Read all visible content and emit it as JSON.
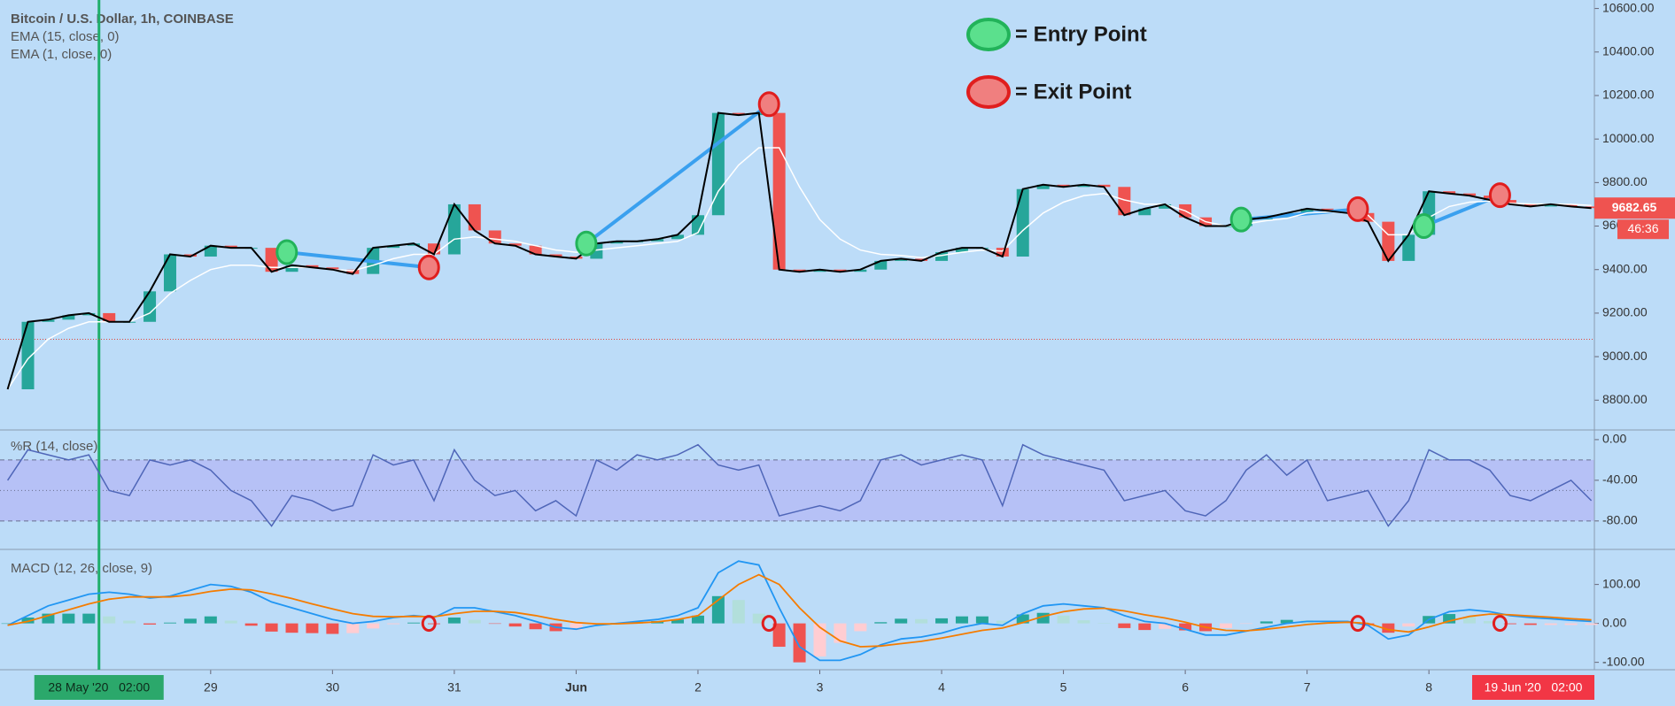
{
  "chart_data": [
    {
      "type": "candlestick-line",
      "title": "Bitcoin / U.S. Dollar, 1h, COINBASE",
      "x": [
        -16,
        -12,
        -8,
        -4,
        0,
        4,
        8,
        12,
        16,
        20,
        24,
        28,
        32,
        36,
        40,
        44,
        48,
        52,
        56,
        60,
        64,
        68,
        72,
        76,
        80,
        84,
        88,
        92,
        96,
        100,
        104,
        108,
        112,
        116,
        120,
        124,
        128,
        132,
        136,
        140,
        144,
        148,
        152,
        156,
        160,
        164,
        168,
        172,
        176,
        180,
        184,
        188,
        192,
        196,
        200,
        204,
        208,
        212,
        216,
        220,
        224,
        228,
        232,
        236,
        240,
        244,
        248,
        252,
        256,
        260,
        264,
        268,
        272,
        276,
        280,
        284,
        288,
        292,
        296
      ],
      "xlim": [
        -17.5,
        296.6
      ],
      "xticks": [
        {
          "value": 24,
          "label": "29"
        },
        {
          "value": 48,
          "label": "30"
        },
        {
          "value": 72,
          "label": "31"
        },
        {
          "value": 96,
          "label": "Jun"
        },
        {
          "value": 120,
          "label": "2"
        },
        {
          "value": 144,
          "label": "3"
        },
        {
          "value": 168,
          "label": "4"
        },
        {
          "value": 192,
          "label": "5"
        },
        {
          "value": 216,
          "label": "6"
        },
        {
          "value": 240,
          "label": "7"
        },
        {
          "value": 264,
          "label": "8"
        }
      ],
      "ylim": [
        8663,
        10639
      ],
      "yticks": [
        {
          "value": 8800,
          "label": "8800.00"
        },
        {
          "value": 9000,
          "label": "9000.00"
        },
        {
          "value": 9200,
          "label": "9200.00"
        },
        {
          "value": 9400,
          "label": "9400.00"
        },
        {
          "value": 9600,
          "label": "9600.00"
        },
        {
          "value": 9800,
          "label": "9800.00"
        },
        {
          "value": 10000,
          "label": "10000.00"
        },
        {
          "value": 10200,
          "label": "10200.00"
        },
        {
          "value": 10400,
          "label": "10400.00"
        },
        {
          "value": 10600,
          "label": "10600.00"
        }
      ],
      "up_color": "#26a69a",
      "down_color": "#ef5350",
      "series": [
        {
          "name": "EMA (15, close, 0)",
          "color": "#ffffff",
          "values": [
            8850,
            8990,
            9080,
            9130,
            9160,
            9160,
            9160,
            9200,
            9290,
            9350,
            9400,
            9420,
            9420,
            9410,
            9410,
            9410,
            9400,
            9395,
            9420,
            9450,
            9470,
            9470,
            9540,
            9550,
            9540,
            9530,
            9510,
            9490,
            9480,
            9490,
            9500,
            9510,
            9520,
            9530,
            9570,
            9760,
            9880,
            9960,
            9960,
            9780,
            9630,
            9540,
            9490,
            9470,
            9465,
            9455,
            9465,
            9480,
            9490,
            9485,
            9580,
            9660,
            9710,
            9740,
            9750,
            9720,
            9700,
            9700,
            9670,
            9620,
            9600,
            9610,
            9625,
            9635,
            9660,
            9665,
            9662,
            9650,
            9560,
            9560,
            9640,
            9690,
            9710,
            9715,
            9705,
            9702,
            9701,
            9700,
            9695
          ]
        },
        {
          "name": "EMA (1, close, 0)",
          "color": "#000000",
          "values": [
            8850,
            9160,
            9170,
            9190,
            9200,
            9160,
            9160,
            9300,
            9470,
            9460,
            9510,
            9500,
            9500,
            9390,
            9420,
            9410,
            9400,
            9380,
            9500,
            9510,
            9520,
            9470,
            9700,
            9580,
            9520,
            9510,
            9470,
            9460,
            9450,
            9520,
            9530,
            9530,
            9540,
            9560,
            9650,
            10120,
            10110,
            10120,
            9400,
            9390,
            9400,
            9390,
            9400,
            9440,
            9450,
            9440,
            9480,
            9500,
            9500,
            9460,
            9770,
            9790,
            9780,
            9790,
            9780,
            9650,
            9680,
            9700,
            9640,
            9600,
            9600,
            9630,
            9640,
            9660,
            9680,
            9670,
            9660,
            9620,
            9440,
            9560,
            9760,
            9750,
            9740,
            9720,
            9700,
            9690,
            9700,
            9690,
            9682.65
          ]
        }
      ],
      "entry_points": {
        "label": "= Entry Point",
        "color": "#5be08d",
        "x": [
          39,
          98,
          227,
          263
        ],
        "y": [
          9480,
          9520,
          9630,
          9600
        ]
      },
      "exit_points": {
        "label": "= Exit Point",
        "color": "#f07f7f",
        "x": [
          67,
          134,
          250,
          278
        ],
        "y": [
          9410,
          10160,
          9678,
          9742
        ]
      },
      "trade_color": "#3aa0ef",
      "reference_line": 9080,
      "cursor": {
        "x": 2,
        "label": "28 May '20   02:00"
      },
      "x_end_label": "19 Jun '20   02:00",
      "last_price": 9682.65,
      "countdown": "46:36"
    },
    {
      "type": "line",
      "title": "%R (14, close)",
      "ylim": [
        -108,
        9.5
      ],
      "yticks": [
        {
          "value": 0,
          "label": "0.00"
        },
        {
          "value": -40,
          "label": "-40.00"
        },
        {
          "value": -80,
          "label": "-80.00"
        }
      ],
      "bands": [
        -20,
        -80
      ],
      "midline": -50,
      "series": [
        {
          "color": "#4f66b8",
          "values": [
            -40,
            -10,
            -15,
            -20,
            -15,
            -50,
            -55,
            -20,
            -25,
            -20,
            -30,
            -50,
            -60,
            -85,
            -55,
            -60,
            -70,
            -65,
            -15,
            -25,
            -20,
            -60,
            -10,
            -40,
            -55,
            -50,
            -70,
            -60,
            -75,
            -20,
            -30,
            -15,
            -20,
            -15,
            -5,
            -25,
            -30,
            -25,
            -75,
            -70,
            -65,
            -70,
            -60,
            -20,
            -15,
            -25,
            -20,
            -15,
            -20,
            -65,
            -5,
            -15,
            -20,
            -25,
            -30,
            -60,
            -55,
            -50,
            -70,
            -75,
            -60,
            -30,
            -15,
            -35,
            -20,
            -60,
            -55,
            -50,
            -85,
            -60,
            -10,
            -20,
            -20,
            -30,
            -55,
            -60,
            -50,
            -40,
            -60
          ]
        }
      ]
    },
    {
      "type": "macd",
      "title": "MACD (12, 26, close, 9)",
      "ylim": [
        -119,
        190
      ],
      "yticks": [
        {
          "value": 100,
          "label": "100.00"
        },
        {
          "value": 0,
          "label": "0.00"
        },
        {
          "value": -100,
          "label": "-100.00"
        }
      ],
      "histogram_colors": [
        "#26a69a",
        "#b2dfdb",
        "#ffcdd2",
        "#ef5350"
      ],
      "histogram": [
        0,
        15,
        25,
        25,
        25,
        18,
        7,
        -3,
        2,
        12,
        18,
        7,
        -6,
        -21,
        -24,
        -25,
        -27,
        -25,
        -13,
        -2,
        2,
        -2,
        15,
        9,
        -1,
        -8,
        -15,
        -20,
        -17,
        -4,
        1,
        4,
        6,
        10,
        20,
        70,
        60,
        25,
        -60,
        -100,
        -85,
        -50,
        -20,
        3,
        12,
        11,
        13,
        18,
        18,
        7,
        23,
        27,
        20,
        8,
        1,
        -12,
        -17,
        -14,
        -18,
        -20,
        -12,
        -1,
        5,
        9,
        8,
        4,
        2,
        -5,
        -24,
        -8,
        19,
        24,
        17,
        6,
        -2,
        -4,
        -4,
        -4,
        -4
      ],
      "series": [
        {
          "color": "#2196f3",
          "values": [
            -5,
            20,
            45,
            60,
            75,
            80,
            75,
            65,
            70,
            85,
            100,
            95,
            80,
            55,
            40,
            25,
            10,
            0,
            5,
            15,
            20,
            15,
            40,
            40,
            30,
            20,
            5,
            -10,
            -15,
            -5,
            0,
            5,
            10,
            20,
            40,
            130,
            160,
            150,
            40,
            -60,
            -95,
            -95,
            -80,
            -55,
            -40,
            -35,
            -25,
            -10,
            0,
            -5,
            25,
            45,
            50,
            45,
            40,
            20,
            5,
            0,
            -15,
            -30,
            -30,
            -20,
            -10,
            0,
            5,
            5,
            5,
            -5,
            -40,
            -30,
            10,
            30,
            35,
            30,
            20,
            15,
            12,
            8,
            5
          ]
        },
        {
          "color": "#f57c00",
          "values": [
            -5,
            5,
            20,
            35,
            50,
            62,
            68,
            68,
            68,
            73,
            82,
            88,
            86,
            76,
            64,
            50,
            37,
            25,
            18,
            17,
            18,
            17,
            25,
            31,
            31,
            28,
            20,
            10,
            2,
            -1,
            -1,
            1,
            4,
            10,
            20,
            60,
            100,
            125,
            100,
            40,
            -10,
            -45,
            -60,
            -58,
            -52,
            -46,
            -38,
            -28,
            -18,
            -12,
            2,
            18,
            30,
            37,
            39,
            32,
            22,
            14,
            3,
            -10,
            -18,
            -19,
            -15,
            -9,
            -3,
            1,
            3,
            0,
            -16,
            -22,
            -9,
            6,
            18,
            24,
            22,
            19,
            16,
            12,
            9
          ]
        }
      ]
    }
  ]
}
